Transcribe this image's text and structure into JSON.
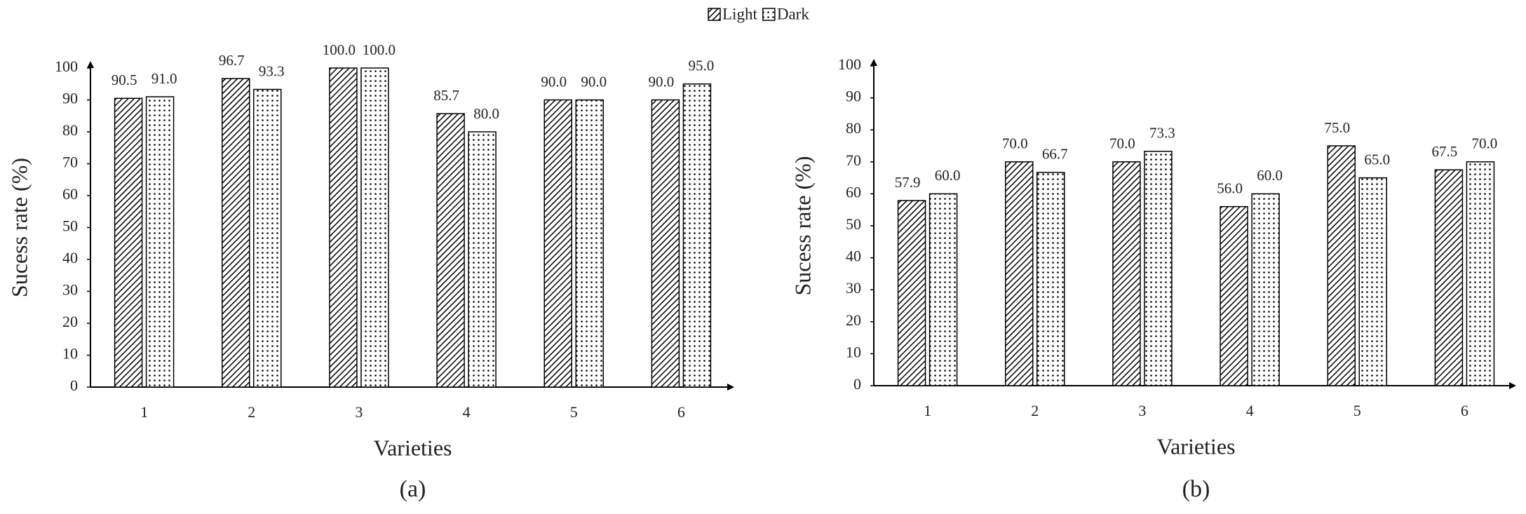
{
  "chart_data": [
    {
      "type": "bar",
      "caption": "(a)",
      "x_label": "Varieties",
      "y_label": "Sucess rate (%)",
      "categories": [
        "1",
        "2",
        "3",
        "4",
        "5",
        "6"
      ],
      "series": [
        {
          "name": "Light",
          "color": "#000000",
          "pattern": "hatch",
          "values": [
            90.5,
            96.7,
            100,
            85.7,
            90,
            90
          ],
          "value_labels": [
            "90.5",
            "96.7",
            "100.0",
            "85.7",
            "90.0",
            "90.0"
          ]
        },
        {
          "name": "Dark",
          "color": "#000000",
          "pattern": "dots",
          "values": [
            91,
            93.3,
            100,
            80,
            90,
            95
          ],
          "value_labels": [
            "91.0",
            "93.3",
            "100.0",
            "80.0",
            "90.0",
            "95.0"
          ]
        }
      ],
      "ylim": [
        0,
        100
      ],
      "yticks": [
        0,
        10,
        20,
        30,
        40,
        50,
        60,
        70,
        80,
        90,
        100
      ],
      "legend": "top"
    },
    {
      "type": "bar",
      "caption": "(b)",
      "x_label": "Varieties",
      "y_label": "Sucess rate (%)",
      "categories": [
        "1",
        "2",
        "3",
        "4",
        "5",
        "6"
      ],
      "series": [
        {
          "color": "#000000",
          "pattern": "hatch",
          "values": [
            57.9,
            70,
            70,
            56,
            75,
            67.5
          ],
          "value_labels": [
            "57.9",
            "70.0",
            "70.0",
            "56.0",
            "75.0",
            "67.5"
          ]
        },
        {
          "color": "#000000",
          "pattern": "dots",
          "values": [
            60,
            66.7,
            73.3,
            60,
            65,
            70
          ],
          "value_labels": [
            "60.0",
            "66.7",
            "73.3",
            "60.0",
            "65.0",
            "70.0"
          ]
        }
      ],
      "ylim": [
        0,
        100
      ],
      "yticks": [
        0,
        10,
        20,
        30,
        40,
        50,
        60,
        70,
        80,
        90,
        100
      ]
    }
  ]
}
